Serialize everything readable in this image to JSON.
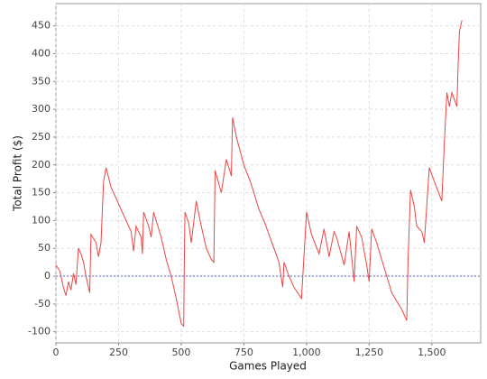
{
  "chart_data": {
    "type": "line",
    "xlabel": "Games Played",
    "ylabel": "Total Profit ($)",
    "x": [
      0,
      15,
      30,
      40,
      50,
      60,
      70,
      80,
      90,
      100,
      110,
      120,
      135,
      140,
      160,
      170,
      180,
      190,
      200,
      220,
      250,
      280,
      300,
      310,
      320,
      340,
      345,
      350,
      370,
      380,
      390,
      420,
      440,
      460,
      480,
      500,
      510,
      512,
      515,
      530,
      540,
      560,
      580,
      600,
      620,
      630,
      635,
      660,
      680,
      700,
      705,
      720,
      750,
      780,
      810,
      830,
      850,
      870,
      890,
      905,
      910,
      930,
      950,
      980,
      1000,
      1020,
      1050,
      1070,
      1090,
      1110,
      1120,
      1150,
      1170,
      1190,
      1200,
      1220,
      1240,
      1250,
      1260,
      1280,
      1300,
      1320,
      1340,
      1380,
      1400,
      1405,
      1415,
      1430,
      1440,
      1460,
      1470,
      1490,
      1510,
      1540,
      1550,
      1560,
      1570,
      1580,
      1600,
      1605,
      1610,
      1620
    ],
    "series": [
      {
        "color": "#ee4444",
        "values": [
          20,
          10,
          -20,
          -35,
          -10,
          -25,
          5,
          -15,
          50,
          40,
          25,
          0,
          -30,
          75,
          60,
          35,
          60,
          170,
          195,
          160,
          130,
          100,
          80,
          45,
          90,
          70,
          40,
          115,
          90,
          70,
          115,
          70,
          30,
          0,
          -40,
          -85,
          -90,
          15,
          115,
          95,
          60,
          135,
          90,
          50,
          30,
          25,
          190,
          150,
          210,
          180,
          285,
          250,
          200,
          165,
          120,
          100,
          75,
          50,
          25,
          -20,
          25,
          0,
          -20,
          -40,
          115,
          75,
          40,
          85,
          35,
          80,
          70,
          20,
          80,
          -10,
          90,
          70,
          20,
          -10,
          85,
          60,
          30,
          0,
          -30,
          -60,
          -80,
          25,
          155,
          125,
          90,
          80,
          60,
          195,
          170,
          135,
          240,
          330,
          305,
          330,
          305,
          380,
          440,
          460
        ]
      }
    ],
    "xlim": [
      0,
      1695
    ],
    "ylim": [
      -120,
      490
    ],
    "xticks": [
      0,
      250,
      500,
      750,
      {
        "value": 1000,
        "label": "1,000"
      },
      {
        "value": 1250,
        "label": "1,250"
      },
      {
        "value": 1500,
        "label": "1,500"
      }
    ],
    "yticks": [
      -100,
      -50,
      0,
      50,
      100,
      150,
      200,
      250,
      300,
      350,
      400,
      450
    ],
    "grid": true,
    "zero_marker": 0,
    "marker_color": "#5566bb"
  }
}
